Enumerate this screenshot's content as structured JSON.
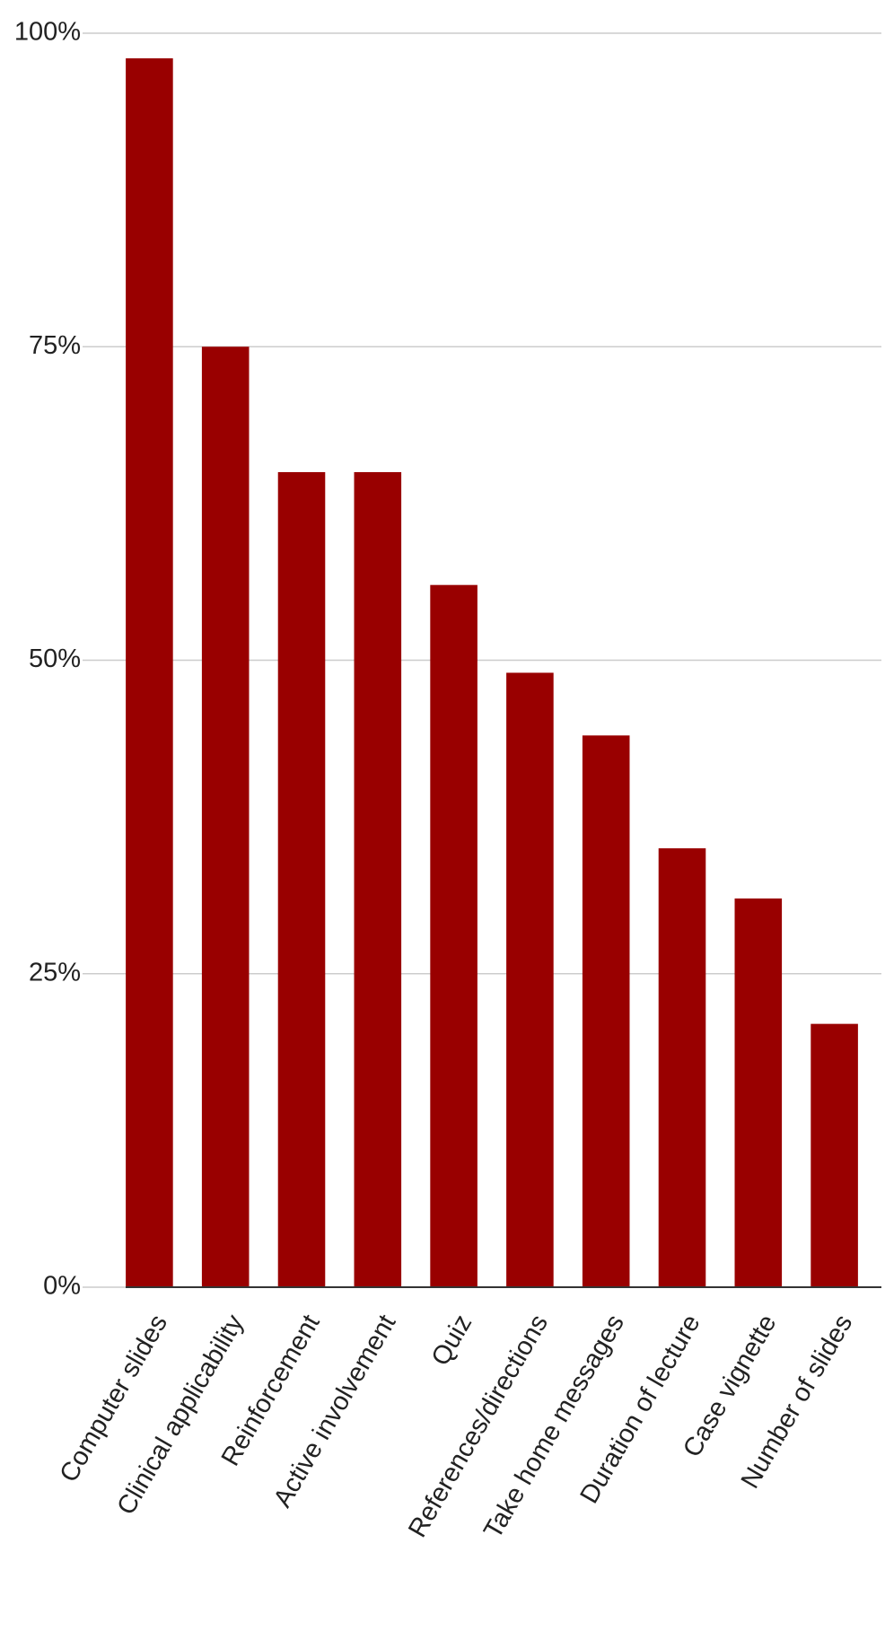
{
  "chart_data": {
    "type": "bar",
    "categories": [
      "Computer slides",
      "Clinical applicability",
      "Reinforcement",
      "Active involvement",
      "Quiz",
      "References/directions",
      "Take home messages",
      "Duration of lecture",
      "Case vignette",
      "Number of slides"
    ],
    "values": [
      98,
      75,
      65,
      65,
      56,
      49,
      44,
      35,
      31,
      21
    ],
    "color": "#990000",
    "ylim": [
      0,
      100
    ],
    "yticks": [
      {
        "value": 0,
        "label": "0%"
      },
      {
        "value": 25,
        "label": "25%"
      },
      {
        "value": 50,
        "label": "50%"
      },
      {
        "value": 75,
        "label": "75%"
      },
      {
        "value": 100,
        "label": "100%"
      }
    ],
    "grid": true
  }
}
